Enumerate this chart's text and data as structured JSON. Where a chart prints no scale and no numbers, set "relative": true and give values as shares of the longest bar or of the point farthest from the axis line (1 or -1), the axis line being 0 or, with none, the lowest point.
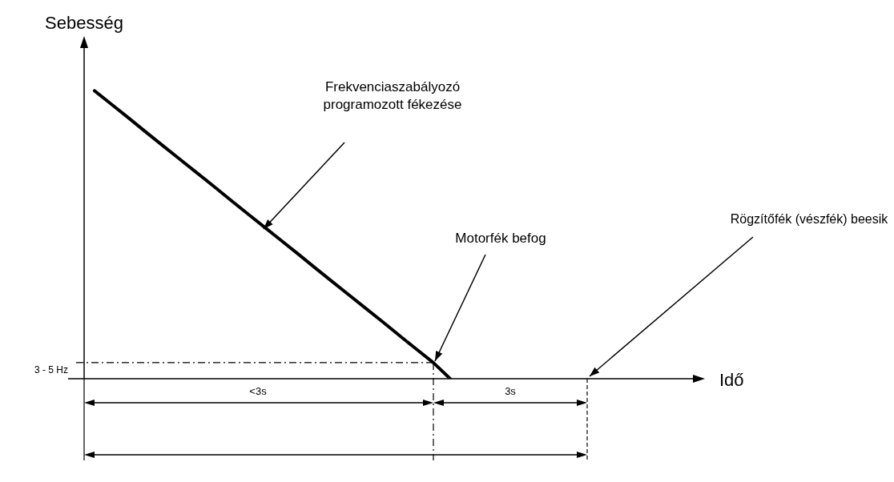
{
  "chart_data": {
    "type": "line",
    "relative": true,
    "ylabel": "Sebesség",
    "categories": [
      null,
      null,
      null,
      null,
      null,
      null,
      null,
      null,
      null,
      null,
      null,
      null,
      null,
      null,
      null,
      null,
      null,
      null,
      null,
      null,
      null,
      null
    ],
    "series": [
      {
        "color": "#000000",
        "values": [
          1,
          0.953,
          0.906,
          0.858,
          0.811,
          0.764,
          0.717,
          0.67,
          0.622,
          0.575,
          0.528,
          0.481,
          0.434,
          0.386,
          0.339,
          0.292,
          0.245,
          0.198,
          0.15,
          0.103,
          0.056,
          0
        ]
      }
    ],
    "ref_lines": [
      {
        "axis": "y",
        "value": 0.056,
        "label": "3 - 5 Hz",
        "color": "#000000",
        "line_style": "dashed"
      }
    ],
    "annotations": [
      "Frekvenciaszabályozó programozott fékezése",
      "Motorfék befog",
      "Rögzítőfék (vészfék) beesik",
      "<3s",
      "3s",
      "Idő"
    ],
    "marker": "none",
    "line_style": "solid"
  }
}
